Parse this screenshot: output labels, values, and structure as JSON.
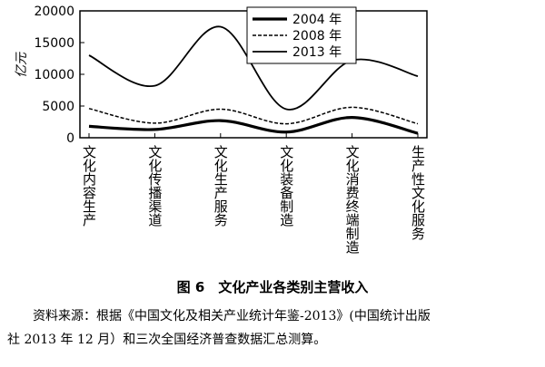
{
  "chart_data": {
    "type": "line",
    "y_label": "亿元",
    "categories": [
      "文化内容生产",
      "文化传播渠道",
      "文化生产服务",
      "文化装备制造",
      "文化消费终端制造",
      "生产性文化服务"
    ],
    "series": [
      {
        "name": "2004 年",
        "color": "#000000",
        "style": "bold",
        "values": [
          1800,
          1300,
          2700,
          900,
          3200,
          700
        ]
      },
      {
        "name": "2008 年",
        "color": "#000000",
        "style": "dashed",
        "values": [
          4600,
          2300,
          4500,
          2200,
          4800,
          2200
        ]
      },
      {
        "name": "2013 年",
        "color": "#000000",
        "style": "solid",
        "values": [
          13000,
          8200,
          17500,
          4500,
          12200,
          9700
        ]
      }
    ],
    "ylim": [
      0,
      20000
    ],
    "yticks": [
      0,
      5000,
      10000,
      15000,
      20000
    ],
    "smooth": true,
    "legend": "upper right",
    "caption": "图 6　文化产业各类别主营收入",
    "source": "资料来源：根据《中国文化及相关产业统计年鉴-2013》(中国统计出版社 2013 年 12 月）和三次全国经济普查数据汇总测算。"
  }
}
